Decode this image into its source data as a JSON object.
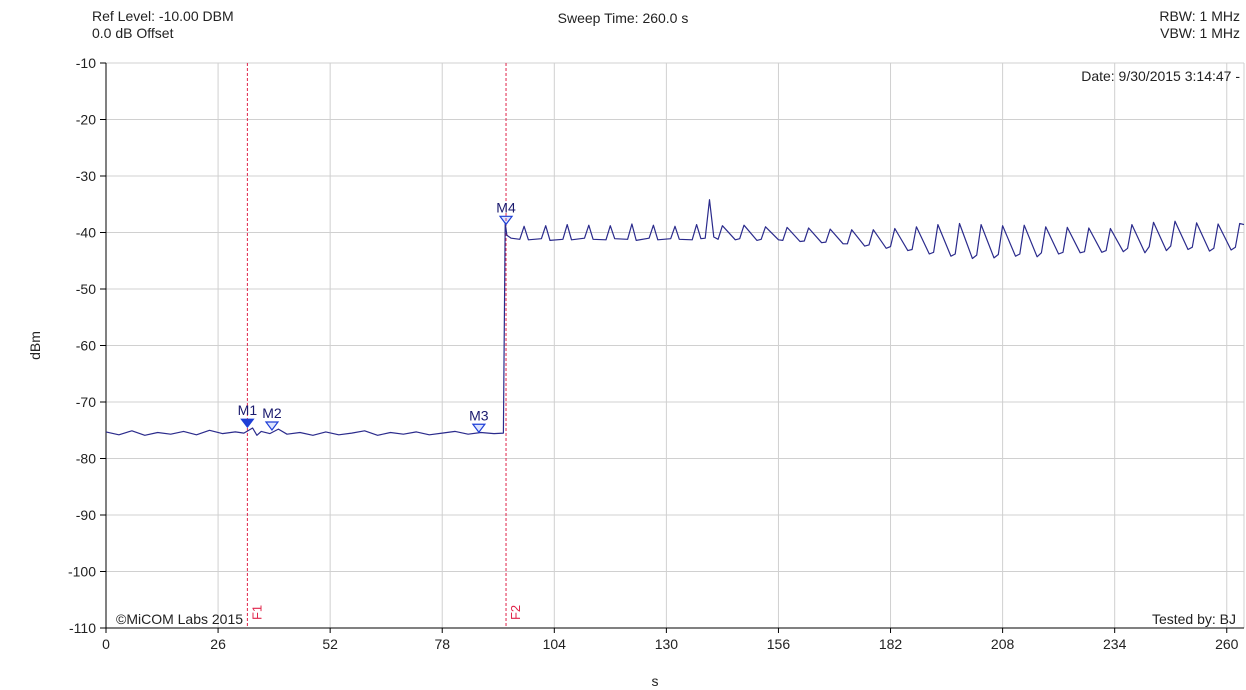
{
  "header": {
    "ref_level": "Ref Level: -10.00 DBM",
    "offset": "0.0 dB Offset",
    "sweep_time": "Sweep Time: 260.0 s",
    "rbw": "RBW: 1 MHz",
    "vbw": "VBW: 1 MHz"
  },
  "colors": {
    "trace": "#2b2b8c",
    "marker": "#1f3fd6",
    "marker_line": "#e0244a",
    "grid": "#d0d0d0",
    "axis": "#000000"
  },
  "chart_data": {
    "type": "line",
    "title": "",
    "xlabel": "s",
    "ylabel": "dBm",
    "xlim": [
      0,
      264
    ],
    "ylim": [
      -110,
      -10
    ],
    "xticks": [
      0,
      26,
      52,
      78,
      104,
      130,
      156,
      182,
      208,
      234,
      260
    ],
    "yticks": [
      -10,
      -20,
      -30,
      -40,
      -50,
      -60,
      -70,
      -80,
      -90,
      -100,
      -110
    ],
    "grid": true,
    "annotations": {
      "date": "Date: 9/30/2015 3:14:47 -",
      "copyright": "©MiCOM Labs 2015",
      "tested_by": "Tested by: BJ"
    },
    "vertical_lines": [
      {
        "label": "F1",
        "x": 32.8
      },
      {
        "label": "F2",
        "x": 92.8
      }
    ],
    "markers": [
      {
        "label": "M1",
        "x": 32.8,
        "y": -74.1,
        "filled": true
      },
      {
        "label": "M2",
        "x": 38.5,
        "y": -74.6,
        "filled": false
      },
      {
        "label": "M3",
        "x": 86.5,
        "y": -75.0,
        "filled": false
      },
      {
        "label": "M4",
        "x": 92.8,
        "y": -38.2,
        "filled": false
      }
    ],
    "series": [
      {
        "x": [
          0,
          3,
          6,
          9,
          12,
          15,
          18,
          21,
          24,
          27,
          30,
          32,
          34,
          35,
          36,
          38,
          40,
          42,
          45,
          48,
          51,
          54,
          57,
          60,
          63,
          66,
          69,
          72,
          75,
          78,
          81,
          84,
          87,
          90,
          92.2,
          92.6,
          93.0,
          94,
          96,
          97,
          98,
          101,
          102,
          103,
          106,
          107,
          108,
          111,
          112,
          113,
          116,
          117,
          118,
          121,
          122,
          123,
          126,
          127,
          128,
          131,
          132,
          133,
          136,
          137,
          138,
          139,
          140,
          141,
          142,
          143,
          146,
          147,
          148,
          151,
          152,
          153,
          156,
          157,
          158,
          161,
          162,
          163,
          166,
          167,
          168,
          171,
          172,
          173,
          176,
          177,
          178,
          181,
          182,
          183,
          186,
          187,
          188,
          191,
          192,
          193,
          196,
          197,
          198,
          201,
          202,
          203,
          206,
          207,
          208,
          211,
          212,
          213,
          216,
          217,
          218,
          221,
          222,
          223,
          226,
          227,
          228,
          231,
          232,
          233,
          236,
          237,
          238,
          241,
          242,
          243,
          246,
          247,
          248,
          251,
          252,
          253,
          256,
          257,
          258,
          261,
          262,
          263,
          264
        ],
        "y": [
          -75.3,
          -75.8,
          -75.1,
          -75.9,
          -75.4,
          -75.7,
          -75.2,
          -75.8,
          -75.0,
          -75.6,
          -75.3,
          -75.5,
          -74.6,
          -75.9,
          -75.2,
          -75.6,
          -74.8,
          -75.7,
          -75.4,
          -75.9,
          -75.3,
          -75.8,
          -75.5,
          -75.1,
          -75.9,
          -75.4,
          -75.7,
          -75.3,
          -75.8,
          -75.5,
          -75.2,
          -75.7,
          -75.4,
          -75.6,
          -75.5,
          -38.3,
          -40.5,
          -41.0,
          -41.2,
          -38.9,
          -41.3,
          -41.1,
          -38.8,
          -41.4,
          -41.2,
          -38.6,
          -41.3,
          -41.0,
          -38.7,
          -41.2,
          -41.3,
          -38.8,
          -41.1,
          -41.2,
          -38.5,
          -41.4,
          -41.0,
          -38.7,
          -41.3,
          -41.1,
          -38.9,
          -41.2,
          -41.3,
          -38.6,
          -41.1,
          -41.0,
          -34.2,
          -40.8,
          -41.2,
          -38.8,
          -41.3,
          -41.1,
          -38.7,
          -41.4,
          -41.2,
          -39.0,
          -41.3,
          -41.4,
          -39.1,
          -41.6,
          -41.5,
          -39.2,
          -41.8,
          -41.7,
          -39.4,
          -42.0,
          -42.0,
          -39.5,
          -42.4,
          -42.2,
          -39.5,
          -42.8,
          -42.5,
          -39.3,
          -43.2,
          -43.0,
          -39.0,
          -43.8,
          -43.5,
          -38.6,
          -44.2,
          -43.8,
          -38.4,
          -44.6,
          -44.0,
          -38.6,
          -44.5,
          -43.9,
          -38.8,
          -44.2,
          -43.8,
          -38.7,
          -44.3,
          -43.6,
          -39.0,
          -43.8,
          -43.5,
          -39.1,
          -43.6,
          -43.4,
          -39.2,
          -43.5,
          -43.2,
          -39.3,
          -43.4,
          -42.8,
          -38.6,
          -43.6,
          -42.5,
          -38.2,
          -43.2,
          -42.4,
          -38.0,
          -43.0,
          -42.6,
          -38.3,
          -43.3,
          -42.8,
          -38.5,
          -43.1,
          -42.6,
          -38.4,
          -38.6
        ]
      }
    ]
  }
}
